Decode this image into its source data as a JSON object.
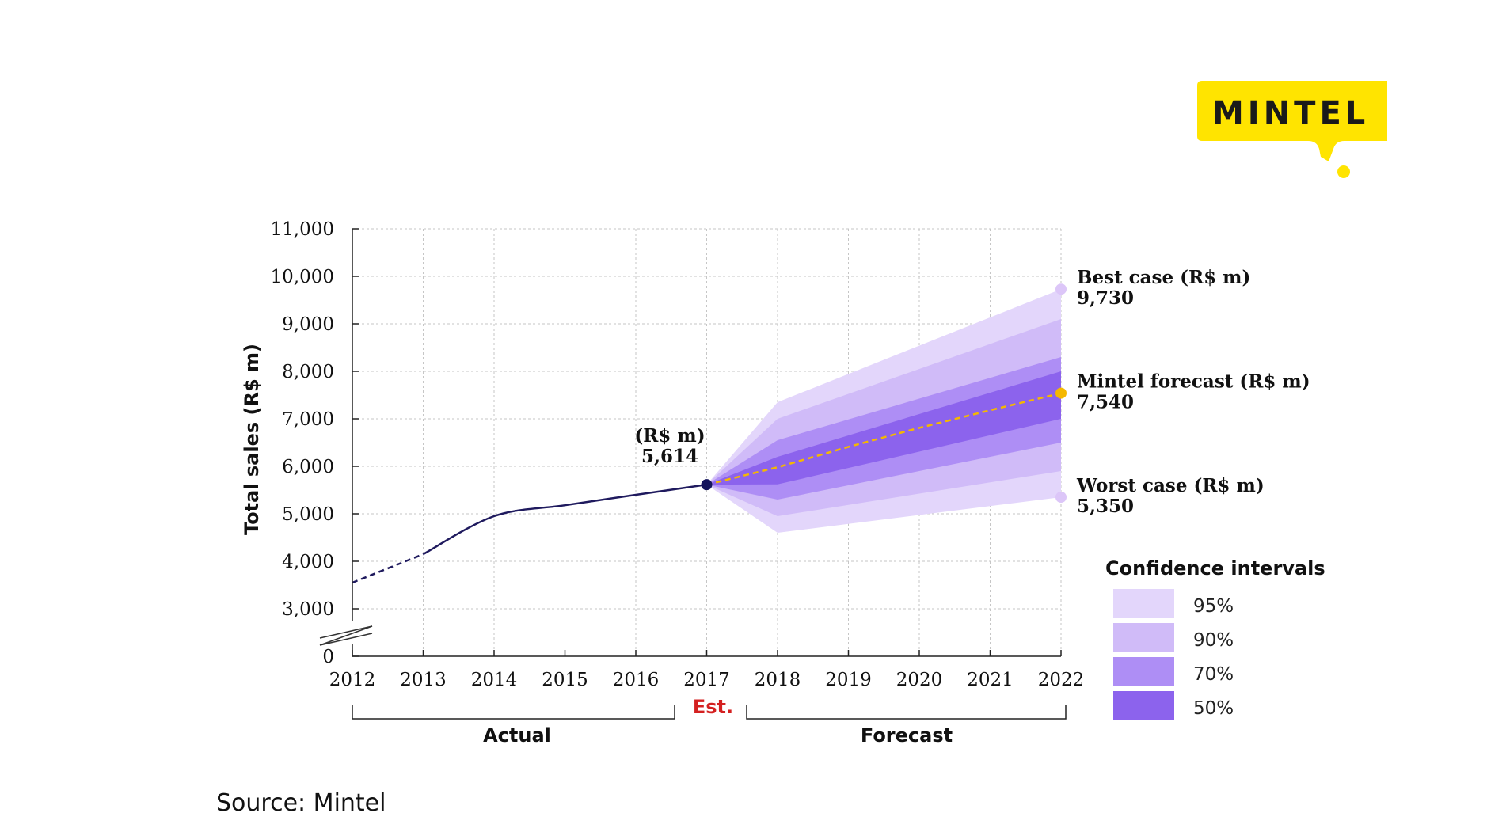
{
  "chart_data": {
    "type": "area",
    "ylabel": "Total sales (R$ m)",
    "xlabel": "",
    "x": [
      "2012",
      "2013",
      "2014",
      "2015",
      "2016",
      "2017",
      "2018",
      "2019",
      "2020",
      "2021",
      "2022"
    ],
    "y_ticks": [
      "0",
      "3,000",
      "4,000",
      "5,000",
      "6,000",
      "7,000",
      "8,000",
      "9,000",
      "10,000",
      "11,000"
    ],
    "y_tick_values": [
      0,
      3000,
      4000,
      5000,
      6000,
      7000,
      8000,
      9000,
      10000,
      11000
    ],
    "ylim": [
      2000,
      11000
    ],
    "y_axis_break": true,
    "grid": true,
    "series": [
      {
        "name": "Actual",
        "x": [
          "2012",
          "2013",
          "2014",
          "2015",
          "2016",
          "2017"
        ],
        "values": [
          3550,
          4150,
          4950,
          5180,
          5400,
          5614
        ],
        "dashed_segment": [
          "2012",
          "2013"
        ]
      },
      {
        "name": "Mintel forecast (R$ m)",
        "x": [
          "2017",
          "2018",
          "2019",
          "2020",
          "2021",
          "2022"
        ],
        "values": [
          5614,
          5980,
          6410,
          6810,
          7180,
          7540
        ],
        "color": "#f5b800"
      }
    ],
    "confidence_bands": [
      {
        "name": "95%",
        "color": "#e3d6fb",
        "x": [
          "2017",
          "2018",
          "2022"
        ],
        "upper": [
          5614,
          7350,
          9730
        ],
        "lower": [
          5614,
          4600,
          5350
        ]
      },
      {
        "name": "90%",
        "color": "#d0bbf8",
        "x": [
          "2017",
          "2018",
          "2022"
        ],
        "upper": [
          5614,
          7000,
          9100
        ],
        "lower": [
          5614,
          4950,
          5900
        ]
      },
      {
        "name": "70%",
        "color": "#ae8ef5",
        "x": [
          "2017",
          "2018",
          "2022"
        ],
        "upper": [
          5614,
          6550,
          8300
        ],
        "lower": [
          5614,
          5300,
          6500
        ]
      },
      {
        "name": "50%",
        "color": "#8c63ed",
        "x": [
          "2017",
          "2018",
          "2022"
        ],
        "upper": [
          5614,
          6200,
          8000
        ],
        "lower": [
          5614,
          5620,
          7000
        ]
      }
    ],
    "annotations": {
      "current_value": {
        "x": "2017",
        "y": 5614,
        "line1": "(R$ m)",
        "line2": "5,614",
        "color": "#14145c"
      },
      "best_case": {
        "x": "2022",
        "y": 9730,
        "line1": "Best case (R$ m)",
        "line2": "9,730",
        "color": "#dcc6f8"
      },
      "mintel_forecast": {
        "x": "2022",
        "y": 7540,
        "line1": "Mintel forecast (R$ m)",
        "line2": "7,540",
        "color": "#f5b800"
      },
      "worst_case": {
        "x": "2022",
        "y": 5350,
        "line1": "Worst case (R$ m)",
        "line2": "5,350",
        "color": "#dcc6f8"
      }
    },
    "periods": {
      "actual": "Actual",
      "estimate": "Est.",
      "forecast": "Forecast",
      "estimate_color": "#d42020"
    },
    "legend": {
      "title": "Confidence intervals",
      "placement": "bottom-right",
      "items": [
        {
          "label": "95%",
          "color": "#e3d6fb"
        },
        {
          "label": "90%",
          "color": "#d0bbf8"
        },
        {
          "label": "70%",
          "color": "#ae8ef5"
        },
        {
          "label": "50%",
          "color": "#8c63ed"
        }
      ]
    },
    "line_color": "#1f1a5e"
  },
  "logo": {
    "text": "MINTEL",
    "color": "#ffe400"
  },
  "source": "Source: Mintel"
}
